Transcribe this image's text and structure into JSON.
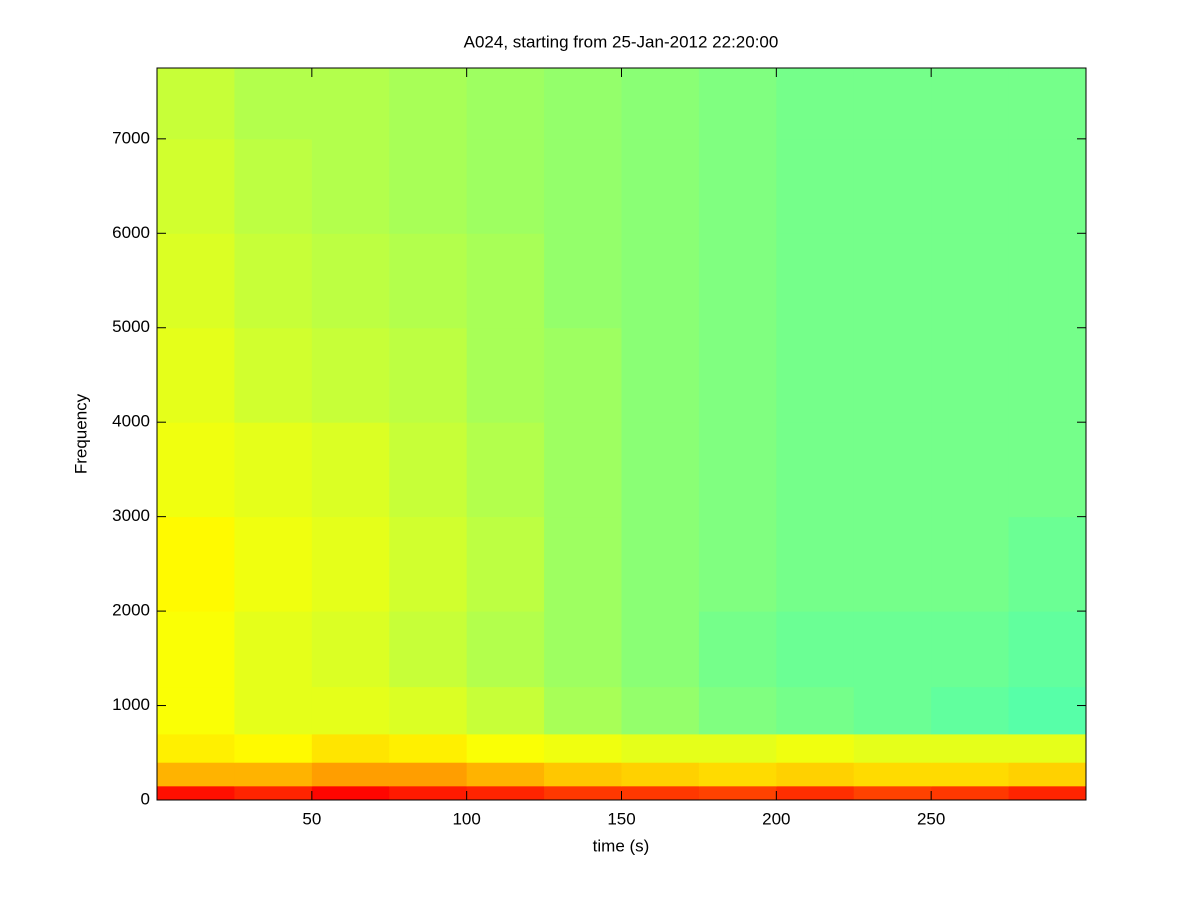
{
  "chart_data": {
    "type": "heatmap",
    "title": "A024, starting from 25-Jan-2012 22:20:00",
    "x_label": "time (s)",
    "y_label": "Frequency",
    "colormap": "jet",
    "x_bins": [
      0,
      25,
      50,
      75,
      100,
      125,
      150,
      175,
      200,
      225,
      250,
      275,
      300
    ],
    "y_bins": [
      0,
      150,
      400,
      700,
      1200,
      2000,
      3000,
      4000,
      5000,
      6000,
      7000,
      7750
    ],
    "z": [
      [
        0.86,
        0.84,
        0.87,
        0.85,
        0.84,
        0.82,
        0.82,
        0.81,
        0.83,
        0.81,
        0.82,
        0.84
      ],
      [
        0.7,
        0.7,
        0.72,
        0.72,
        0.7,
        0.68,
        0.67,
        0.66,
        0.67,
        0.66,
        0.66,
        0.67
      ],
      [
        0.64,
        0.63,
        0.65,
        0.64,
        0.62,
        0.61,
        0.6,
        0.6,
        0.61,
        0.6,
        0.6,
        0.6
      ],
      [
        0.62,
        0.6,
        0.6,
        0.59,
        0.57,
        0.54,
        0.52,
        0.5,
        0.49,
        0.48,
        0.47,
        0.46
      ],
      [
        0.62,
        0.6,
        0.59,
        0.57,
        0.55,
        0.53,
        0.51,
        0.49,
        0.48,
        0.48,
        0.48,
        0.47
      ],
      [
        0.63,
        0.61,
        0.6,
        0.58,
        0.56,
        0.53,
        0.51,
        0.5,
        0.49,
        0.49,
        0.49,
        0.48
      ],
      [
        0.61,
        0.6,
        0.59,
        0.57,
        0.55,
        0.53,
        0.51,
        0.5,
        0.49,
        0.49,
        0.49,
        0.49
      ],
      [
        0.6,
        0.58,
        0.57,
        0.56,
        0.54,
        0.53,
        0.51,
        0.5,
        0.49,
        0.49,
        0.49,
        0.49
      ],
      [
        0.59,
        0.57,
        0.56,
        0.55,
        0.54,
        0.52,
        0.51,
        0.5,
        0.49,
        0.49,
        0.49,
        0.49
      ],
      [
        0.58,
        0.56,
        0.55,
        0.54,
        0.53,
        0.52,
        0.51,
        0.5,
        0.49,
        0.49,
        0.49,
        0.49
      ],
      [
        0.57,
        0.55,
        0.55,
        0.54,
        0.53,
        0.52,
        0.51,
        0.5,
        0.49,
        0.49,
        0.49,
        0.49
      ]
    ],
    "xlim": [
      0,
      300
    ],
    "xticks": [
      50,
      100,
      150,
      200,
      250
    ],
    "ylim": [
      0,
      7750
    ],
    "yticks": [
      0,
      1000,
      2000,
      3000,
      4000,
      5000,
      6000,
      7000
    ],
    "grid": false
  }
}
